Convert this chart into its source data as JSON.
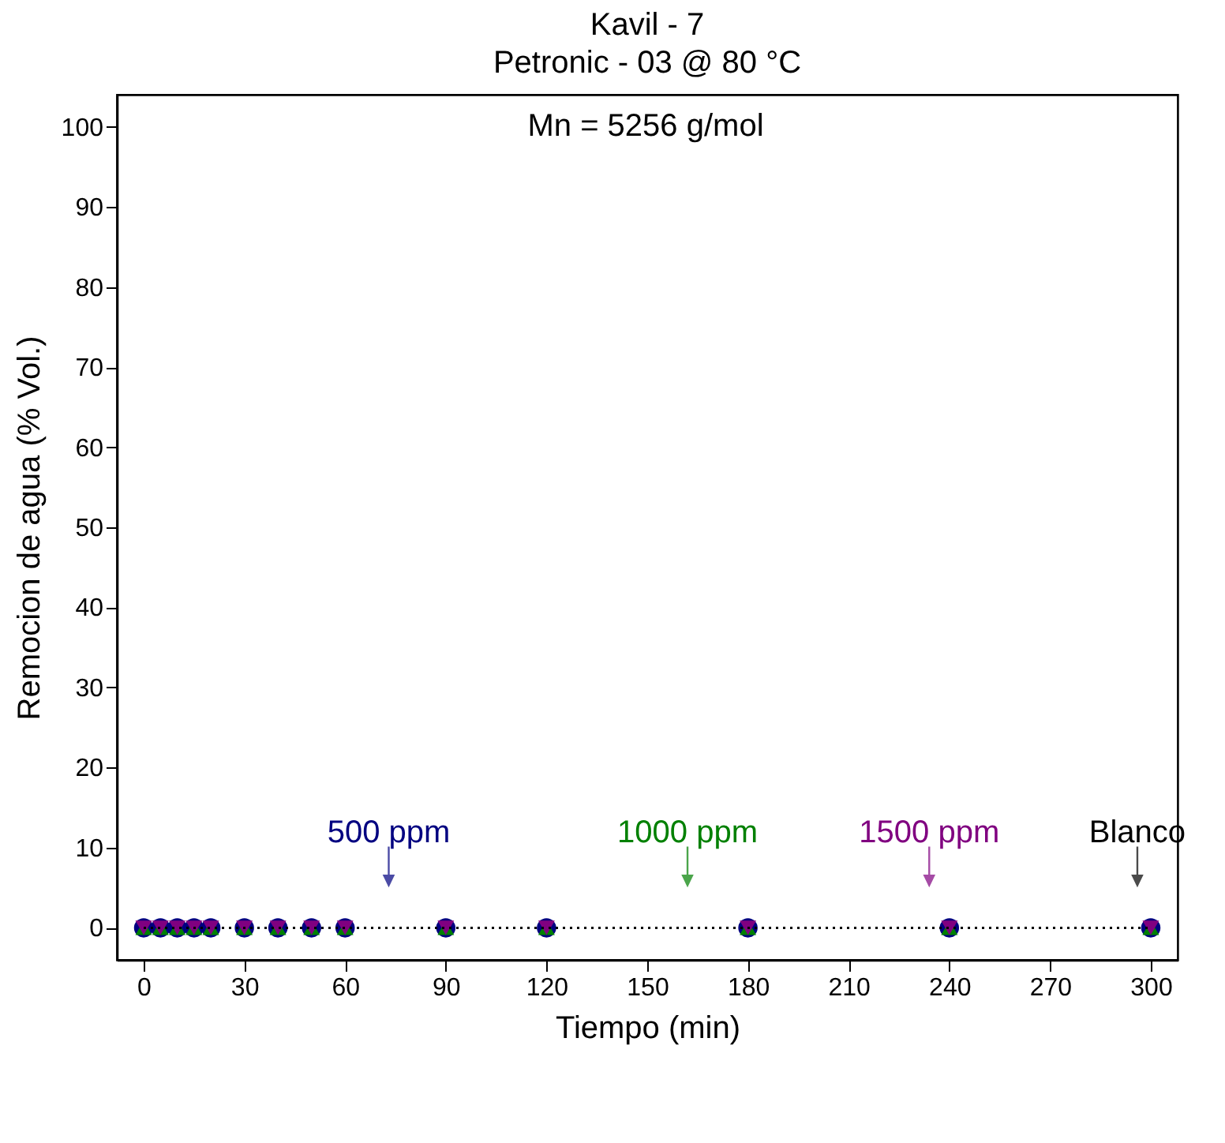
{
  "chart_data": {
    "type": "line",
    "title": "Kavil - 7",
    "subtitle": "Petronic - 03 @ 80 °C",
    "xlabel": "Tiempo (min)",
    "ylabel": "Remocion de agua (% Vol.)",
    "x": [
      0,
      5,
      10,
      15,
      20,
      30,
      40,
      50,
      60,
      90,
      120,
      180,
      240,
      300
    ],
    "series": [
      {
        "color": "#000000",
        "marker": "none",
        "line_style": "dotted",
        "values": [
          0,
          0,
          0,
          0,
          0,
          0,
          0,
          0,
          0,
          0,
          0,
          0,
          0,
          0
        ]
      },
      {
        "type": "scatter",
        "color": "#000080",
        "marker": "circle",
        "values": [
          0,
          0,
          0,
          0,
          0,
          0,
          0,
          0,
          0,
          0,
          0,
          0,
          0,
          0
        ]
      },
      {
        "type": "scatter",
        "color": "#008000",
        "marker": "triangle",
        "values": [
          0,
          0,
          0,
          0,
          0,
          0,
          0,
          0,
          0,
          0,
          0,
          0,
          0,
          0
        ]
      },
      {
        "type": "scatter",
        "color": "#800080",
        "marker": "triangle-down",
        "values": [
          0,
          0,
          0,
          0,
          0,
          0,
          0,
          0,
          0,
          0,
          0,
          0,
          0,
          0
        ]
      }
    ],
    "annotations": [
      {
        "text": "Blanco",
        "x": 296,
        "y": 0
      },
      {
        "text": "500 ppm",
        "x": 73,
        "y": 0
      },
      {
        "text": "1000 ppm",
        "x": 162,
        "y": 0
      },
      {
        "text": "1500 ppm",
        "x": 234,
        "y": 0
      },
      "Mn = 5256 g/mol"
    ],
    "xlim": [
      -8,
      308
    ],
    "xticks": [
      0,
      30,
      60,
      90,
      120,
      150,
      180,
      210,
      240,
      270,
      300
    ],
    "ylim": [
      -4,
      104
    ],
    "yticks": [
      0,
      10,
      20,
      30,
      40,
      50,
      60,
      70,
      80,
      90,
      100
    ],
    "grid": false
  }
}
